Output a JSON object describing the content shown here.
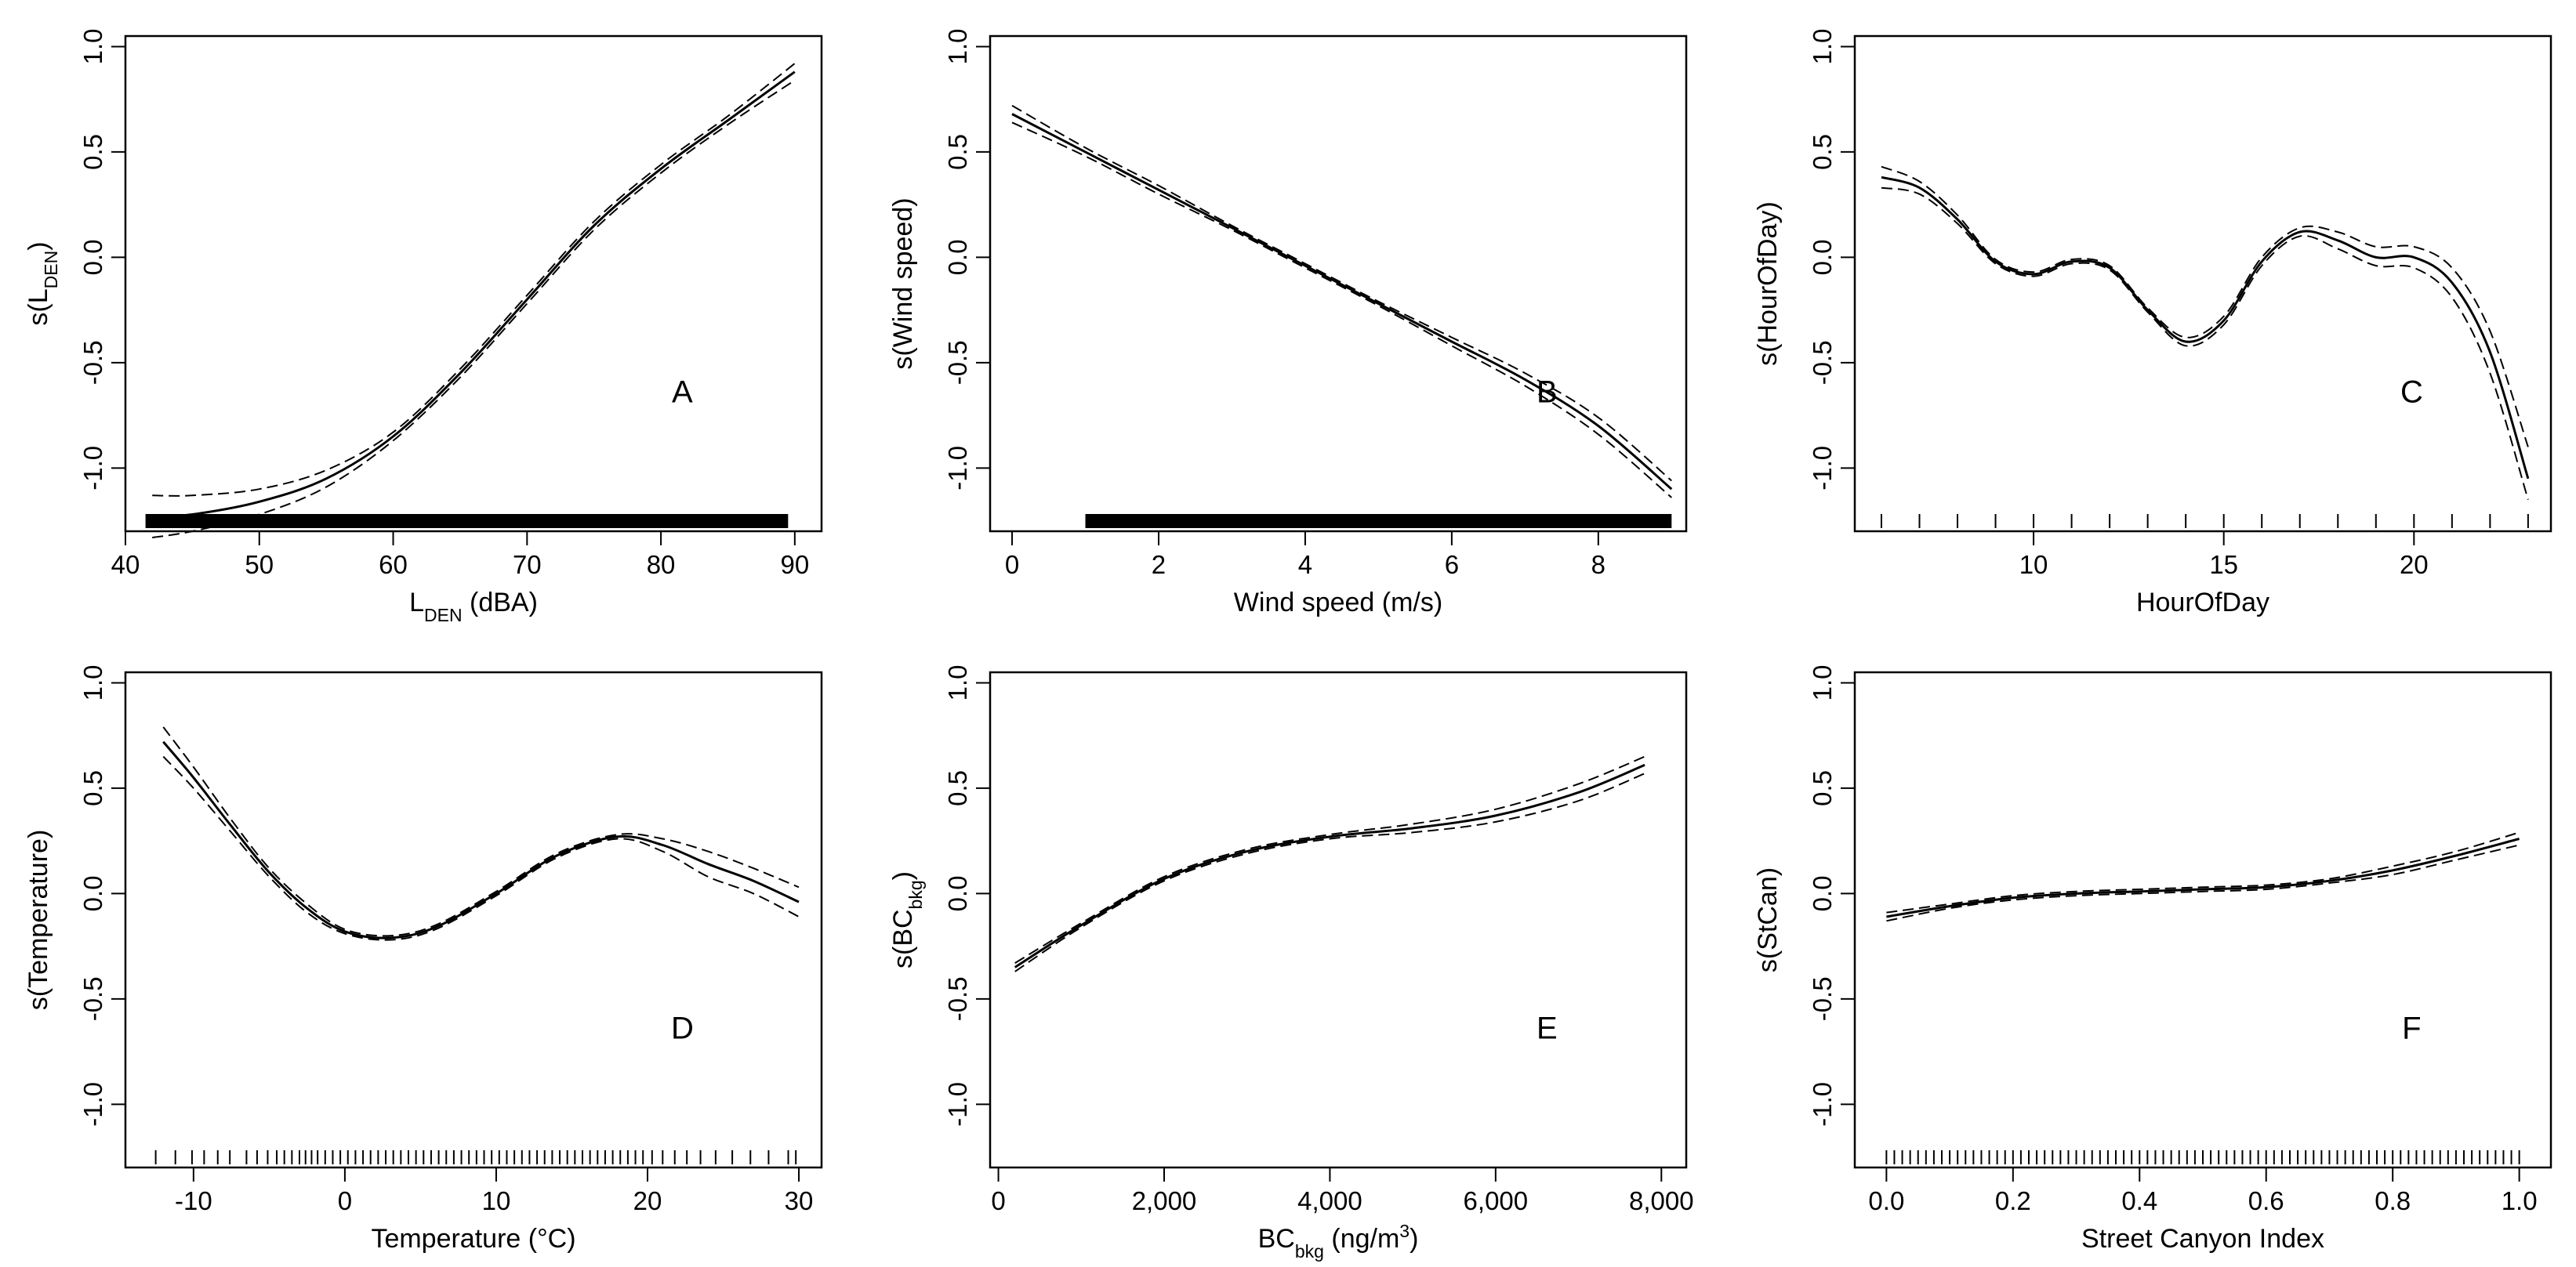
{
  "chart_data": [
    {
      "type": "line",
      "panel_label": "A",
      "xlabel": "L",
      "xlabel_sub": "DEN",
      "xlabel_post": " (dBA)",
      "ylabel": "s(L",
      "ylabel_sub": "DEN",
      "ylabel_post": ")",
      "xlim": [
        40,
        92
      ],
      "ylim": [
        -1.3,
        1.05
      ],
      "xticks": [
        40,
        50,
        60,
        70,
        80,
        90
      ],
      "xtick_labels": [
        "40",
        "50",
        "60",
        "70",
        "80",
        "90"
      ],
      "yticks": [
        -1.0,
        -0.5,
        0.0,
        0.5,
        1.0
      ],
      "ytick_labels": [
        "-1.0",
        "-0.5",
        "0.0",
        "0.5",
        "1.0"
      ],
      "rug": {
        "type": "range",
        "from": 41.5,
        "to": 89.5
      },
      "series": [
        {
          "name": "fit",
          "x": [
            42,
            45,
            50,
            55,
            60,
            65,
            70,
            75,
            80,
            85,
            90
          ],
          "y": [
            -1.23,
            -1.22,
            -1.16,
            -1.05,
            -0.85,
            -0.55,
            -0.2,
            0.15,
            0.42,
            0.65,
            0.88
          ]
        },
        {
          "name": "upper 95% CI",
          "x": [
            42,
            45,
            50,
            55,
            60,
            65,
            70,
            75,
            80,
            85,
            90
          ],
          "y": [
            -1.13,
            -1.13,
            -1.1,
            -1.01,
            -0.83,
            -0.53,
            -0.18,
            0.17,
            0.44,
            0.67,
            0.92
          ]
        },
        {
          "name": "lower 95% CI",
          "x": [
            42,
            45,
            50,
            55,
            60,
            65,
            70,
            75,
            80,
            85,
            90
          ],
          "y": [
            -1.33,
            -1.3,
            -1.22,
            -1.09,
            -0.87,
            -0.57,
            -0.22,
            0.13,
            0.4,
            0.63,
            0.84
          ]
        }
      ]
    },
    {
      "type": "line",
      "panel_label": "B",
      "xlabel": "Wind speed (m/s)",
      "ylabel": "s(Wind speed)",
      "xlim": [
        -0.3,
        9.2
      ],
      "ylim": [
        -1.3,
        1.05
      ],
      "xticks": [
        0,
        2,
        4,
        6,
        8
      ],
      "xtick_labels": [
        "0",
        "2",
        "4",
        "6",
        "8"
      ],
      "yticks": [
        -1.0,
        -0.5,
        0.0,
        0.5,
        1.0
      ],
      "ytick_labels": [
        "-1.0",
        "-0.5",
        "0.0",
        "0.5",
        "1.0"
      ],
      "rug": {
        "type": "range",
        "from": 1.0,
        "to": 9.0
      },
      "series": [
        {
          "name": "fit",
          "x": [
            0,
            1,
            2,
            3,
            4,
            5,
            6,
            7,
            8,
            9
          ],
          "y": [
            0.68,
            0.5,
            0.32,
            0.14,
            -0.04,
            -0.22,
            -0.4,
            -0.58,
            -0.8,
            -1.1
          ]
        },
        {
          "name": "upper 95% CI",
          "x": [
            0,
            1,
            2,
            3,
            4,
            5,
            6,
            7,
            8,
            9
          ],
          "y": [
            0.72,
            0.52,
            0.34,
            0.15,
            -0.03,
            -0.21,
            -0.38,
            -0.55,
            -0.76,
            -1.06
          ]
        },
        {
          "name": "lower 95% CI",
          "x": [
            0,
            1,
            2,
            3,
            4,
            5,
            6,
            7,
            8,
            9
          ],
          "y": [
            0.64,
            0.48,
            0.3,
            0.13,
            -0.05,
            -0.23,
            -0.42,
            -0.61,
            -0.84,
            -1.14
          ]
        }
      ]
    },
    {
      "type": "line",
      "panel_label": "C",
      "xlabel": "HourOfDay",
      "ylabel": "s(HourOfDay)",
      "xlim": [
        5.3,
        23.6
      ],
      "ylim": [
        -1.3,
        1.05
      ],
      "xticks": [
        10,
        15,
        20
      ],
      "xtick_labels": [
        "10",
        "15",
        "20"
      ],
      "yticks": [
        -1.0,
        -0.5,
        0.0,
        0.5,
        1.0
      ],
      "ytick_labels": [
        "-1.0",
        "-0.5",
        "0.0",
        "0.5",
        "1.0"
      ],
      "rug": {
        "type": "ticks",
        "values": [
          6,
          7,
          8,
          9,
          10,
          11,
          12,
          13,
          14,
          15,
          16,
          17,
          18,
          19,
          20,
          21,
          22,
          23
        ]
      },
      "series": [
        {
          "name": "fit",
          "x": [
            6,
            7,
            8,
            9,
            10,
            11,
            12,
            13,
            14,
            15,
            16,
            17,
            18,
            19,
            20,
            21,
            22,
            23
          ],
          "y": [
            0.38,
            0.33,
            0.18,
            -0.02,
            -0.08,
            -0.02,
            -0.05,
            -0.25,
            -0.4,
            -0.3,
            -0.02,
            0.12,
            0.08,
            0.0,
            0.0,
            -0.12,
            -0.45,
            -1.05
          ]
        },
        {
          "name": "upper 95% CI",
          "x": [
            6,
            7,
            8,
            9,
            10,
            11,
            12,
            13,
            14,
            15,
            16,
            17,
            18,
            19,
            20,
            21,
            22,
            23
          ],
          "y": [
            0.43,
            0.36,
            0.2,
            -0.01,
            -0.07,
            -0.01,
            -0.04,
            -0.24,
            -0.38,
            -0.28,
            0.0,
            0.14,
            0.12,
            0.05,
            0.05,
            -0.05,
            -0.35,
            -0.9
          ]
        },
        {
          "name": "lower 95% CI",
          "x": [
            6,
            7,
            8,
            9,
            10,
            11,
            12,
            13,
            14,
            15,
            16,
            17,
            18,
            19,
            20,
            21,
            22,
            23
          ],
          "y": [
            0.33,
            0.3,
            0.16,
            -0.03,
            -0.09,
            -0.03,
            -0.06,
            -0.26,
            -0.42,
            -0.32,
            -0.04,
            0.1,
            0.04,
            -0.04,
            -0.05,
            -0.19,
            -0.55,
            -1.15
          ]
        }
      ]
    },
    {
      "type": "line",
      "panel_label": "D",
      "xlabel": "Temperature (°C)",
      "ylabel": "s(Temperature)",
      "xlim": [
        -14.5,
        31.5
      ],
      "ylim": [
        -1.3,
        1.05
      ],
      "xticks": [
        -10,
        0,
        10,
        20,
        30
      ],
      "xtick_labels": [
        "-10",
        "0",
        "10",
        "20",
        "30"
      ],
      "yticks": [
        -1.0,
        -0.5,
        0.0,
        0.5,
        1.0
      ],
      "ytick_labels": [
        "-1.0",
        "-0.5",
        "0.0",
        "0.5",
        "1.0"
      ],
      "rug": {
        "type": "ticks",
        "values": [
          -12.5,
          -11.2,
          -10.1,
          -9.3,
          -8.4,
          -7.6,
          -6.5,
          -5.8,
          -5.1,
          -4.5,
          -4.0,
          -3.5,
          -3.0,
          -2.6,
          -2.2,
          -1.8,
          -1.3,
          -0.8,
          -0.3,
          0.2,
          0.7,
          1.2,
          1.7,
          2.2,
          2.7,
          3.2,
          3.7,
          4.2,
          4.7,
          5.2,
          5.7,
          6.2,
          6.7,
          7.2,
          7.7,
          8.2,
          8.7,
          9.2,
          9.7,
          10.2,
          10.7,
          11.2,
          11.7,
          12.2,
          12.7,
          13.2,
          13.7,
          14.2,
          14.7,
          15.2,
          15.7,
          16.2,
          16.7,
          17.2,
          17.7,
          18.2,
          18.7,
          19.2,
          19.7,
          20.3,
          21.0,
          21.8,
          22.6,
          23.5,
          24.5,
          25.6,
          26.8,
          28.0,
          29.3,
          29.8
        ]
      },
      "series": [
        {
          "name": "fit",
          "x": [
            -12,
            -10,
            -7.5,
            -5,
            -2.5,
            0,
            3,
            6,
            10,
            14,
            18,
            21,
            24,
            27,
            30
          ],
          "y": [
            0.72,
            0.55,
            0.32,
            0.1,
            -0.07,
            -0.18,
            -0.21,
            -0.16,
            0.0,
            0.18,
            0.27,
            0.23,
            0.14,
            0.06,
            -0.04
          ]
        },
        {
          "name": "upper 95% CI",
          "x": [
            -12,
            -10,
            -7.5,
            -5,
            -2.5,
            0,
            3,
            6,
            10,
            14,
            18,
            21,
            24,
            27,
            30
          ],
          "y": [
            0.79,
            0.6,
            0.35,
            0.12,
            -0.05,
            -0.17,
            -0.2,
            -0.15,
            0.01,
            0.19,
            0.28,
            0.26,
            0.2,
            0.12,
            0.03
          ]
        },
        {
          "name": "lower 95% CI",
          "x": [
            -12,
            -10,
            -7.5,
            -5,
            -2.5,
            0,
            3,
            6,
            10,
            14,
            18,
            21,
            24,
            27,
            30
          ],
          "y": [
            0.65,
            0.5,
            0.29,
            0.08,
            -0.09,
            -0.19,
            -0.22,
            -0.17,
            -0.01,
            0.17,
            0.26,
            0.2,
            0.08,
            0.0,
            -0.11
          ]
        }
      ]
    },
    {
      "type": "line",
      "panel_label": "E",
      "xlabel": "BC",
      "xlabel_sub": "bkg",
      "xlabel_post": " (ng/m",
      "xlabel_sup": "3",
      "xlabel_post2": ")",
      "ylabel": "s(BC",
      "ylabel_sub": "bkg",
      "ylabel_post": ")",
      "xlim": [
        -100,
        8300
      ],
      "ylim": [
        -1.3,
        1.05
      ],
      "xticks": [
        0,
        2000,
        4000,
        6000,
        8000
      ],
      "xtick_labels": [
        "0",
        "2,000",
        "4,000",
        "6,000",
        "8,000"
      ],
      "yticks": [
        -1.0,
        -0.5,
        0.0,
        0.5,
        1.0
      ],
      "ytick_labels": [
        "-1.0",
        "-0.5",
        "0.0",
        "0.5",
        "1.0"
      ],
      "rug": null,
      "series": [
        {
          "name": "fit",
          "x": [
            200,
            1000,
            2000,
            3000,
            4000,
            5000,
            6000,
            7000,
            7800
          ],
          "y": [
            -0.35,
            -0.15,
            0.07,
            0.2,
            0.27,
            0.31,
            0.37,
            0.48,
            0.61
          ]
        },
        {
          "name": "upper 95% CI",
          "x": [
            200,
            1000,
            2000,
            3000,
            4000,
            5000,
            6000,
            7000,
            7800
          ],
          "y": [
            -0.33,
            -0.14,
            0.08,
            0.21,
            0.28,
            0.33,
            0.4,
            0.52,
            0.65
          ]
        },
        {
          "name": "lower 95% CI",
          "x": [
            200,
            1000,
            2000,
            3000,
            4000,
            5000,
            6000,
            7000,
            7800
          ],
          "y": [
            -0.37,
            -0.16,
            0.06,
            0.19,
            0.26,
            0.29,
            0.34,
            0.44,
            0.57
          ]
        }
      ]
    },
    {
      "type": "line",
      "panel_label": "F",
      "xlabel": "Street Canyon Index",
      "ylabel": "s(StCan)",
      "xlim": [
        -0.05,
        1.05
      ],
      "ylim": [
        -1.3,
        1.05
      ],
      "xticks": [
        0.0,
        0.2,
        0.4,
        0.6,
        0.8,
        1.0
      ],
      "xtick_labels": [
        "0.0",
        "0.2",
        "0.4",
        "0.6",
        "0.8",
        "1.0"
      ],
      "yticks": [
        -1.0,
        -0.5,
        0.0,
        0.5,
        1.0
      ],
      "ytick_labels": [
        "-1.0",
        "-0.5",
        "0.0",
        "0.5",
        "1.0"
      ],
      "rug": {
        "type": "grid",
        "from": 0.0,
        "to": 1.0,
        "step": 0.0125
      },
      "series": [
        {
          "name": "fit",
          "x": [
            0,
            0.1,
            0.2,
            0.3,
            0.4,
            0.5,
            0.6,
            0.7,
            0.8,
            0.9,
            1.0
          ],
          "y": [
            -0.11,
            -0.06,
            -0.02,
            0.0,
            0.01,
            0.02,
            0.03,
            0.06,
            0.11,
            0.18,
            0.26
          ]
        },
        {
          "name": "upper 95% CI",
          "x": [
            0,
            0.1,
            0.2,
            0.3,
            0.4,
            0.5,
            0.6,
            0.7,
            0.8,
            0.9,
            1.0
          ],
          "y": [
            -0.09,
            -0.05,
            -0.01,
            0.01,
            0.02,
            0.03,
            0.04,
            0.07,
            0.13,
            0.2,
            0.29
          ]
        },
        {
          "name": "lower 95% CI",
          "x": [
            0,
            0.1,
            0.2,
            0.3,
            0.4,
            0.5,
            0.6,
            0.7,
            0.8,
            0.9,
            1.0
          ],
          "y": [
            -0.13,
            -0.07,
            -0.03,
            -0.01,
            0.0,
            0.01,
            0.02,
            0.05,
            0.09,
            0.16,
            0.23
          ]
        }
      ]
    }
  ]
}
